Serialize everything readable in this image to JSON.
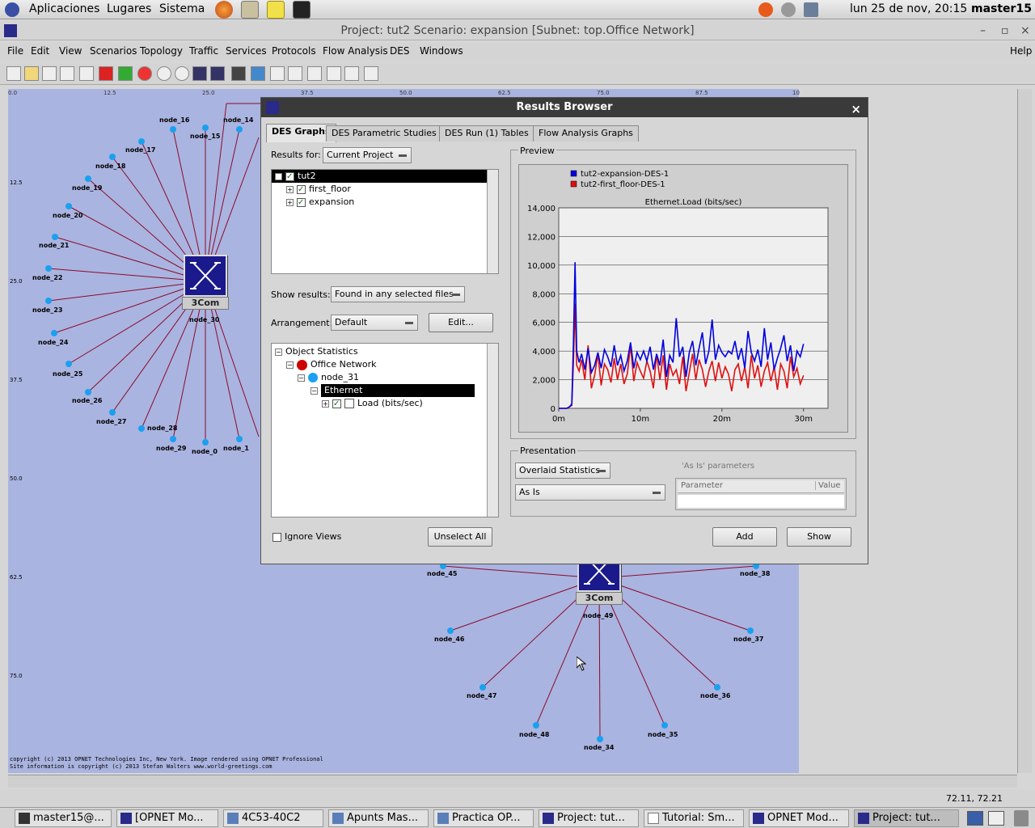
{
  "top_panel": {
    "menus": [
      "Aplicaciones",
      "Lugares",
      "Sistema"
    ],
    "clock": "lun 25 de nov, 20:15",
    "user": "master15"
  },
  "window": {
    "title": "Project: tut2 Scenario: expansion  [Subnet: top.Office Network]",
    "menu": [
      "File",
      "Edit",
      "View",
      "Scenarios",
      "Topology",
      "Traffic",
      "Services",
      "Protocols",
      "Flow Analysis",
      "DES",
      "Windows"
    ],
    "help": "Help"
  },
  "canvas": {
    "ruler_x": [
      "0.0",
      "12.5",
      "25.0",
      "37.5",
      "50.0",
      "62.5",
      "75.0",
      "87.5",
      "10"
    ],
    "ruler_y": [
      "12.5",
      "25.0",
      "37.5",
      "50.0",
      "62.5",
      "75.0"
    ],
    "switch_brand": "3Com",
    "hub1_label": "node_30",
    "hub2_label": "node_49",
    "copyright_1": "copyright (c) 2013 OPNET Technologies Inc, New York. Image rendered using OPNET Professional",
    "copyright_2": "Site information is copyright (c) 2013 Stefan Walters www.world-greetings.com",
    "coords": "72.11, 72.21"
  },
  "results_browser": {
    "title": "Results Browser",
    "close": "×",
    "tabs": [
      "DES Graphs",
      "DES Parametric Studies",
      "DES Run (1) Tables",
      "Flow Analysis Graphs"
    ],
    "results_for_label": "Results for:",
    "results_for_value": "Current Project",
    "project_tree": [
      "tut2",
      "first_floor",
      "expansion"
    ],
    "show_results_label": "Show results:",
    "show_results_value": "Found in any selected files",
    "arrangement_label": "Arrangement:",
    "arrangement_value": "Default",
    "edit_button": "Edit...",
    "stats_tree": [
      "Object Statistics",
      "Office Network",
      "node_31",
      "Ethernet",
      "Load (bits/sec)"
    ],
    "ignore_views": "Ignore Views",
    "unselect_all": "Unselect All",
    "preview_label": "Preview",
    "presentation_label": "Presentation",
    "presentation_value": "Overlaid Statistics",
    "as_is_value": "As Is",
    "as_is_params_label": "'As Is' parameters",
    "param_col": "Parameter",
    "value_col": "Value",
    "add_button": "Add",
    "show_button": "Show"
  },
  "taskbar": {
    "items": [
      "master15@...",
      "[OPNET Mo...",
      "4C53-40C2",
      "Apunts Mas...",
      "Practica OP...",
      "Project: tut...",
      "Tutorial: Sm...",
      "OPNET Mod...",
      "Project: tut..."
    ]
  },
  "chart_data": {
    "type": "line",
    "title": "Ethernet.Load (bits/sec)",
    "xlabel": "",
    "ylabel": "",
    "x_ticks": [
      "0m",
      "10m",
      "20m",
      "30m"
    ],
    "y_ticks": [
      "0",
      "2,000",
      "4,000",
      "6,000",
      "8,000",
      "10,000",
      "12,000",
      "14,000"
    ],
    "xlim": [
      0,
      33
    ],
    "ylim": [
      0,
      14000
    ],
    "grid": true,
    "legend_position": "top-left",
    "series": [
      {
        "name": "tut2-expansion-DES-1",
        "color": "#0000e0",
        "x": [
          0.0,
          1.0,
          1.3,
          1.6,
          1.8,
          2.0,
          2.2,
          2.5,
          2.8,
          3.2,
          3.6,
          4.0,
          4.4,
          4.8,
          5.2,
          5.6,
          6.0,
          6.4,
          6.8,
          7.2,
          7.6,
          8.0,
          8.4,
          8.8,
          9.2,
          9.6,
          10.0,
          10.4,
          10.8,
          11.2,
          11.6,
          12.0,
          12.4,
          12.8,
          13.2,
          13.6,
          14.0,
          14.4,
          14.8,
          15.2,
          15.6,
          16.0,
          16.4,
          16.8,
          17.2,
          17.6,
          18.0,
          18.4,
          18.8,
          19.2,
          19.6,
          20.0,
          20.4,
          20.8,
          21.2,
          21.6,
          22.0,
          22.4,
          22.8,
          23.2,
          23.6,
          24.0,
          24.4,
          24.8,
          25.2,
          25.6,
          26.0,
          26.4,
          26.8,
          27.2,
          27.6,
          28.0,
          28.4,
          28.8,
          29.2,
          29.6,
          30.0
        ],
        "y": [
          0,
          0,
          100,
          300,
          4500,
          10200,
          4000,
          3200,
          3800,
          2700,
          4200,
          2500,
          3000,
          3900,
          2800,
          4100,
          3600,
          2900,
          4400,
          3000,
          3700,
          2600,
          3300,
          4600,
          2800,
          3900,
          3400,
          4000,
          3300,
          4300,
          2700,
          3800,
          3000,
          4800,
          2200,
          3700,
          3200,
          6300,
          3600,
          4300,
          2200,
          3900,
          4700,
          3000,
          4200,
          5300,
          3100,
          4000,
          6200,
          3400,
          4400,
          3900,
          3600,
          4000,
          3800,
          4700,
          3400,
          4200,
          2800,
          5400,
          3900,
          3300,
          4100,
          2900,
          5600,
          3400,
          4600,
          2700,
          3500,
          4200,
          5100,
          3300,
          4400,
          2600,
          4000,
          3600,
          4500
        ]
      },
      {
        "name": "tut2-first_floor-DES-1",
        "color": "#e01010",
        "x": [
          0.0,
          1.0,
          1.3,
          1.6,
          1.8,
          2.0,
          2.2,
          2.5,
          2.8,
          3.2,
          3.6,
          4.0,
          4.4,
          4.8,
          5.2,
          5.6,
          6.0,
          6.4,
          6.8,
          7.2,
          7.6,
          8.0,
          8.4,
          8.8,
          9.2,
          9.6,
          10.0,
          10.4,
          10.8,
          11.2,
          11.6,
          12.0,
          12.4,
          12.8,
          13.2,
          13.6,
          14.0,
          14.4,
          14.8,
          15.2,
          15.6,
          16.0,
          16.4,
          16.8,
          17.2,
          17.6,
          18.0,
          18.4,
          18.8,
          19.2,
          19.6,
          20.0,
          20.4,
          20.8,
          21.2,
          21.6,
          22.0,
          22.4,
          22.8,
          23.2,
          23.6,
          24.0,
          24.4,
          24.8,
          25.2,
          25.6,
          26.0,
          26.4,
          26.8,
          27.2,
          27.6,
          28.0,
          28.4,
          28.8,
          29.2,
          29.6,
          30.0
        ],
        "y": [
          0,
          0,
          100,
          200,
          3200,
          7300,
          3000,
          2600,
          3400,
          2000,
          4400,
          1400,
          2300,
          3800,
          1600,
          3100,
          2700,
          1800,
          3500,
          2000,
          3100,
          1700,
          2400,
          4400,
          1900,
          3200,
          2600,
          2100,
          3300,
          2600,
          1400,
          3800,
          2000,
          3700,
          1300,
          3100,
          2300,
          2700,
          1700,
          3600,
          1200,
          2500,
          3800,
          2000,
          3400,
          2700,
          1500,
          2600,
          3300,
          1900,
          3200,
          2100,
          2900,
          2400,
          1200,
          2700,
          3100,
          1900,
          2900,
          1400,
          3700,
          2100,
          3000,
          1500,
          2600,
          3200,
          1900,
          2900,
          1300,
          3100,
          2600,
          1400,
          3600,
          2200,
          2800,
          1700,
          2300
        ]
      }
    ]
  }
}
